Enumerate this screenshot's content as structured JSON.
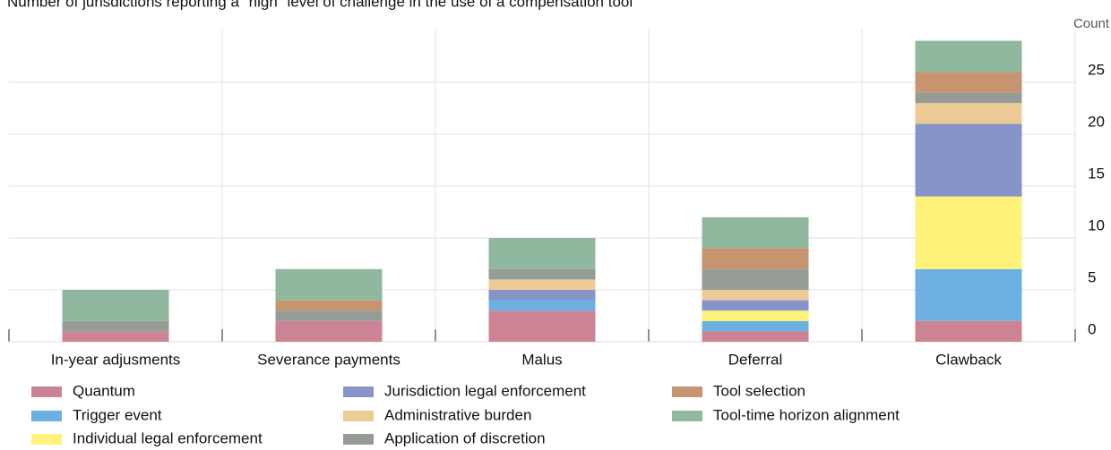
{
  "chart_data": {
    "type": "stacked_bar",
    "title": "Number of jurisdictions reporting a \"high\" level of challenge in the use of a compensation tool",
    "y_label": "Count",
    "categories": [
      "In-year adjusments",
      "Severance payments",
      "Malus",
      "Deferral",
      "Clawback"
    ],
    "series": [
      {
        "name": "Quantum",
        "color": "#cc8495",
        "values": [
          1,
          2,
          3,
          1,
          2
        ]
      },
      {
        "name": "Trigger event",
        "color": "#6cb0e2",
        "values": [
          0,
          0,
          1,
          1,
          5
        ]
      },
      {
        "name": "Individual legal enforcement",
        "color": "#fff27a",
        "values": [
          0,
          0,
          0,
          1,
          7
        ]
      },
      {
        "name": "Jurisdiction legal enforcement",
        "color": "#8694ca",
        "values": [
          0,
          0,
          1,
          1,
          7
        ]
      },
      {
        "name": "Administrative burden",
        "color": "#eccb96",
        "values": [
          0,
          0,
          1,
          1,
          2
        ]
      },
      {
        "name": "Application of discretion",
        "color": "#959c95",
        "values": [
          1,
          1,
          1,
          2,
          1
        ]
      },
      {
        "name": "Tool selection",
        "color": "#c6956f",
        "values": [
          0,
          1,
          0,
          2,
          2
        ]
      },
      {
        "name": "Tool-time horizon alignment",
        "color": "#90b89f",
        "values": [
          3,
          3,
          3,
          3,
          3
        ]
      }
    ],
    "ylim": [
      0,
      30
    ],
    "yticks": [
      0,
      5,
      10,
      15,
      20,
      25
    ],
    "grid": true
  }
}
